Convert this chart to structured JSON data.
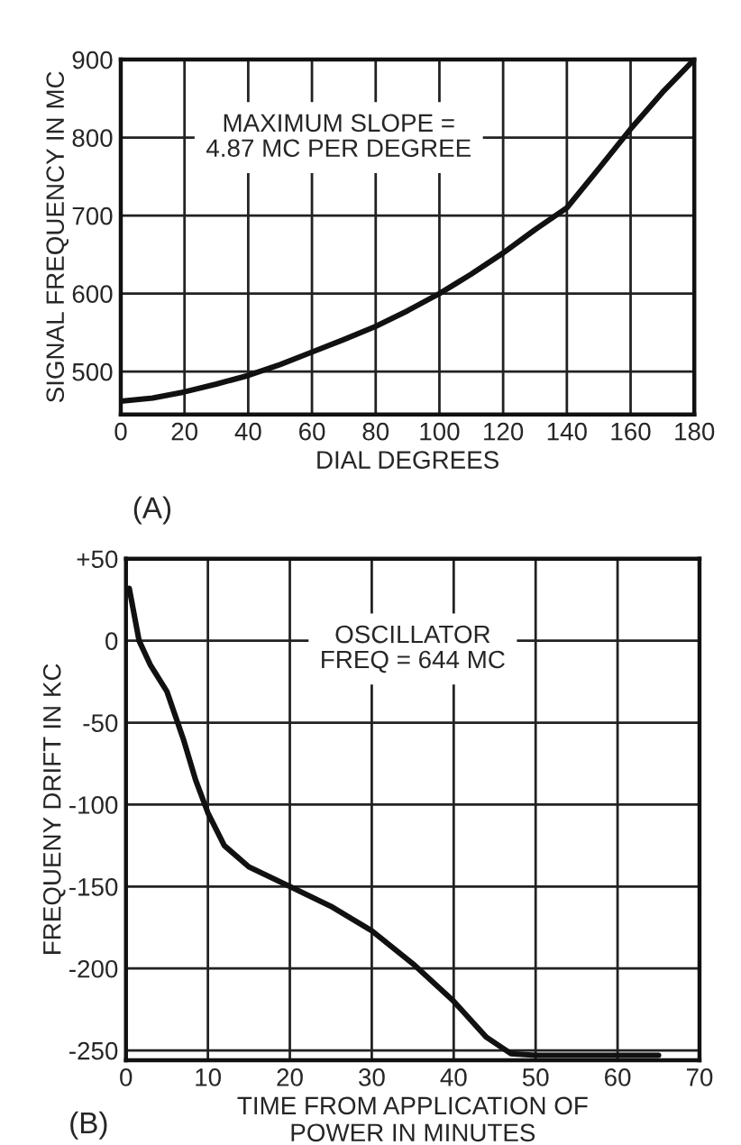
{
  "chart_data": [
    {
      "type": "line",
      "xlabel": "DIAL DEGREES",
      "ylabel": "SIGNAL FREQUENCY IN MC",
      "x": [
        0,
        10,
        20,
        30,
        40,
        50,
        60,
        70,
        80,
        90,
        100,
        110,
        120,
        130,
        140,
        150,
        160,
        170,
        180
      ],
      "series": [
        {
          "color": "#111111",
          "values": [
            462,
            466,
            474,
            484,
            495,
            509,
            525,
            541,
            558,
            578,
            600,
            625,
            652,
            682,
            710,
            760,
            811,
            858,
            900
          ]
        }
      ],
      "xlim": [
        0,
        180
      ],
      "xticks": [
        0,
        20,
        40,
        60,
        80,
        100,
        120,
        140,
        160,
        180
      ],
      "ylim": [
        445,
        900
      ],
      "yticks": [
        500,
        600,
        700,
        800,
        900
      ],
      "grid": true,
      "marker": "none",
      "line_style": "solid",
      "annotations": [
        "MAXIMUM SLOPE =\n4.87 MC PER DEGREE",
        "(A)"
      ]
    },
    {
      "type": "line",
      "xlabel": "TIME FROM APPLICATION OF\nPOWER IN MINUTES",
      "ylabel": "FREQUENY DRIFT IN KC",
      "x": [
        0.4,
        1.6,
        3,
        5,
        7,
        8.5,
        10,
        12,
        15,
        20,
        25,
        30,
        35,
        40,
        44,
        47,
        50,
        55,
        60,
        65
      ],
      "series": [
        {
          "color": "#111111",
          "values": [
            32,
            0,
            -15,
            -31,
            -60,
            -85,
            -105,
            -125,
            -138,
            -150,
            -162,
            -177,
            -197,
            -220,
            -242,
            -252,
            -253,
            -253,
            -253,
            -253
          ]
        }
      ],
      "xlim": [
        0,
        70
      ],
      "xticks": [
        0,
        10,
        20,
        30,
        40,
        50,
        60,
        70
      ],
      "ylim": [
        -256,
        50
      ],
      "yticks": [
        {
          "value": 50,
          "label": "+50"
        },
        0,
        -50,
        -100,
        -150,
        -200,
        -250
      ],
      "grid": true,
      "marker": "none",
      "line_style": "solid",
      "annotations": [
        "OSCILLATOR\nFREQ = 644 MC",
        "(B)"
      ]
    }
  ]
}
